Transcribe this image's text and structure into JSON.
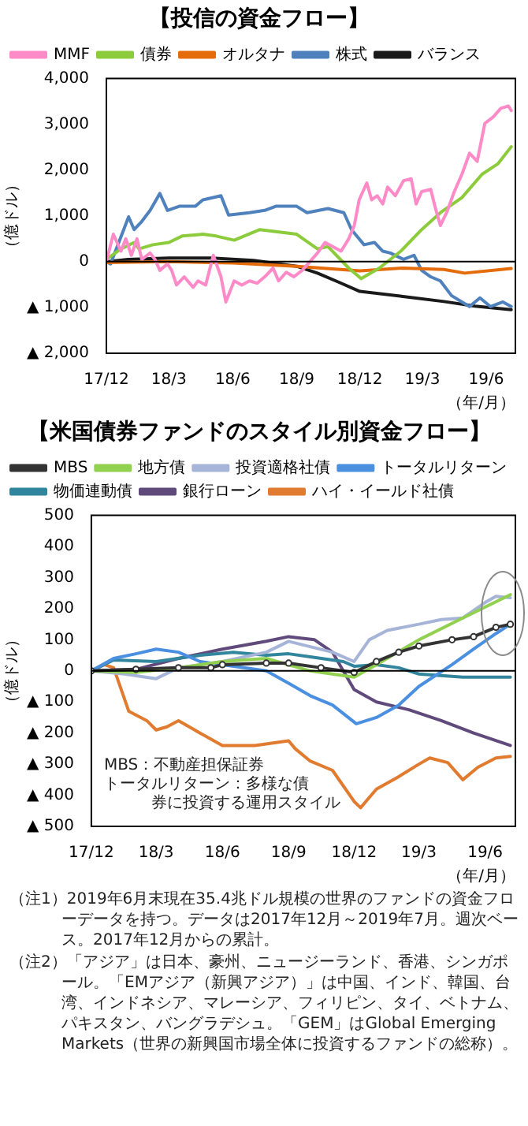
{
  "chart_data": [
    {
      "type": "line",
      "title": "【投信の資金フロー】",
      "ylabel": "（億ドル）",
      "xlabel": "（年/月）",
      "legend": "top left",
      "marker": "none",
      "grid": false,
      "xlim": [
        "2017-12-01",
        "2019-07-13"
      ],
      "xticks": [
        {
          "value": "2017-12-01",
          "label": "17/12"
        },
        {
          "value": "2018-03-01",
          "label": "18/3"
        },
        {
          "value": "2018-06-01",
          "label": "18/6"
        },
        {
          "value": "2018-09-01",
          "label": "18/9"
        },
        {
          "value": "2018-12-01",
          "label": "18/12"
        },
        {
          "value": "2019-03-01",
          "label": "19/3"
        },
        {
          "value": "2019-06-01",
          "label": "19/6"
        }
      ],
      "ylim": [
        -2000,
        4000
      ],
      "yticks": [
        {
          "value": -2000,
          "label": "▲ 2,000"
        },
        {
          "value": -1000,
          "label": "▲ 1,000"
        },
        0,
        {
          "value": 1000,
          "label": "1,000"
        },
        {
          "value": 2000,
          "label": "2,000"
        },
        {
          "value": 3000,
          "label": "3,000"
        },
        {
          "value": 4000,
          "label": "4,000"
        }
      ],
      "ref_lines": [
        {
          "axis": "y",
          "value": 0,
          "color": "#000000"
        }
      ],
      "series": [
        {
          "name": "MMF",
          "color": "#ff8ac8",
          "x": [
            "2017-12-01",
            "2017-12-11",
            "2017-12-22",
            "2017-12-29",
            "2018-01-06",
            "2018-01-14",
            "2018-01-21",
            "2018-02-02",
            "2018-02-09",
            "2018-02-16",
            "2018-02-27",
            "2018-03-05",
            "2018-03-12",
            "2018-03-23",
            "2018-04-05",
            "2018-04-12",
            "2018-04-23",
            "2018-05-04",
            "2018-05-15",
            "2018-05-22",
            "2018-06-03",
            "2018-06-14",
            "2018-06-25",
            "2018-07-06",
            "2018-07-17",
            "2018-07-29",
            "2018-08-06",
            "2018-08-17",
            "2018-08-28",
            "2018-09-09",
            "2018-09-20",
            "2018-10-01",
            "2018-10-12",
            "2018-10-23",
            "2018-11-04",
            "2018-11-15",
            "2018-11-23",
            "2018-11-30",
            "2018-12-11",
            "2018-12-18",
            "2018-12-26",
            "2019-01-03",
            "2019-01-10",
            "2019-01-21",
            "2019-02-02",
            "2019-02-13",
            "2019-02-20",
            "2019-02-28",
            "2019-03-13",
            "2019-03-20",
            "2019-03-27",
            "2019-04-05",
            "2019-04-16",
            "2019-04-27",
            "2019-05-08",
            "2019-05-19",
            "2019-05-30",
            "2019-06-11",
            "2019-06-22",
            "2019-07-03",
            "2019-07-07"
          ],
          "values": [
            0,
            600,
            230,
            500,
            140,
            500,
            50,
            190,
            50,
            -190,
            -50,
            -190,
            -510,
            -330,
            -560,
            -420,
            -510,
            140,
            -330,
            -880,
            -420,
            -510,
            -420,
            -470,
            -330,
            -140,
            -420,
            -230,
            -330,
            -190,
            0,
            190,
            420,
            330,
            230,
            500,
            790,
            1350,
            1720,
            1350,
            1440,
            1260,
            1630,
            1440,
            1770,
            1810,
            1260,
            1530,
            1580,
            1160,
            790,
            1070,
            1530,
            1910,
            2370,
            2190,
            3020,
            3160,
            3350,
            3400,
            3300
          ]
        },
        {
          "name": "債券",
          "color": "#8ccc3c",
          "x": [
            "2017-12-01",
            "2017-12-22",
            "2018-01-10",
            "2018-01-17",
            "2018-02-06",
            "2018-03-01",
            "2018-03-20",
            "2018-04-19",
            "2018-05-08",
            "2018-06-03",
            "2018-07-10",
            "2018-09-01",
            "2018-10-01",
            "2018-10-16",
            "2018-11-15",
            "2018-12-03",
            "2018-12-29",
            "2019-01-29",
            "2019-02-28",
            "2019-03-27",
            "2019-04-27",
            "2019-05-26",
            "2019-06-18",
            "2019-07-07"
          ],
          "values": [
            50,
            280,
            420,
            280,
            370,
            420,
            560,
            600,
            560,
            470,
            700,
            600,
            280,
            330,
            -140,
            -370,
            -140,
            230,
            700,
            1070,
            1400,
            1910,
            2140,
            2510
          ]
        },
        {
          "name": "オルタナ",
          "color": "#e46c0a",
          "x": [
            "2017-12-01",
            "2018-03-01",
            "2018-06-01",
            "2018-09-01",
            "2018-12-01",
            "2019-02-01",
            "2019-04-01",
            "2019-05-01",
            "2019-07-07"
          ],
          "values": [
            -20,
            0,
            -30,
            -100,
            -200,
            -140,
            -170,
            -250,
            -150
          ]
        },
        {
          "name": "株式",
          "color": "#4f81bd",
          "x": [
            "2017-12-01",
            "2017-12-07",
            "2018-01-02",
            "2018-01-10",
            "2018-01-21",
            "2018-02-02",
            "2018-02-16",
            "2018-02-27",
            "2018-03-16",
            "2018-04-08",
            "2018-04-19",
            "2018-05-15",
            "2018-05-26",
            "2018-06-25",
            "2018-07-17",
            "2018-08-02",
            "2018-09-01",
            "2018-09-16",
            "2018-10-16",
            "2018-11-08",
            "2018-11-19",
            "2018-12-07",
            "2018-12-22",
            "2019-01-03",
            "2019-01-14",
            "2019-02-02",
            "2019-02-17",
            "2019-02-28",
            "2019-03-13",
            "2019-03-27",
            "2019-04-12",
            "2019-04-27",
            "2019-05-08",
            "2019-05-23",
            "2019-06-07",
            "2019-06-25",
            "2019-07-07"
          ],
          "values": [
            0,
            -50,
            980,
            700,
            880,
            1120,
            1490,
            1120,
            1210,
            1210,
            1350,
            1440,
            1020,
            1070,
            1120,
            1210,
            1210,
            1070,
            1160,
            1070,
            700,
            370,
            420,
            230,
            190,
            50,
            140,
            -190,
            -330,
            -420,
            -740,
            -880,
            -980,
            -790,
            -980,
            -880,
            -980
          ]
        },
        {
          "name": "バランス",
          "color": "#1a1a1a",
          "x": [
            "2017-12-01",
            "2018-01-01",
            "2018-03-01",
            "2018-05-01",
            "2018-07-01",
            "2018-09-01",
            "2018-10-01",
            "2018-11-01",
            "2018-12-01",
            "2019-02-01",
            "2019-04-01",
            "2019-05-16",
            "2019-07-07"
          ],
          "values": [
            0,
            50,
            80,
            80,
            30,
            -100,
            -250,
            -450,
            -650,
            -760,
            -870,
            -970,
            -1050
          ]
        }
      ]
    },
    {
      "type": "line",
      "title": "【米国債券ファンドのスタイル別資金フロー】",
      "ylabel": "（億ドル）",
      "xlabel": "（年/月）",
      "legend": "top left",
      "marker": "none",
      "grid": false,
      "xlim": [
        "2017-12-01",
        "2019-07-13"
      ],
      "xticks": [
        {
          "value": "2017-12-01",
          "label": "17/12"
        },
        {
          "value": "2018-03-01",
          "label": "18/3"
        },
        {
          "value": "2018-06-01",
          "label": "18/6"
        },
        {
          "value": "2018-09-01",
          "label": "18/9"
        },
        {
          "value": "2018-12-01",
          "label": "18/12"
        },
        {
          "value": "2019-03-01",
          "label": "19/3"
        },
        {
          "value": "2019-06-01",
          "label": "19/6"
        }
      ],
      "ylim": [
        -500,
        500
      ],
      "yticks": [
        {
          "value": -500,
          "label": "▲ 500"
        },
        {
          "value": -400,
          "label": "▲ 400"
        },
        {
          "value": -300,
          "label": "▲ 300"
        },
        {
          "value": -200,
          "label": "▲ 200"
        },
        {
          "value": -100,
          "label": "▲ 100"
        },
        0,
        100,
        200,
        300,
        400,
        500
      ],
      "ref_lines": [
        {
          "axis": "y",
          "value": 0,
          "color": "#000000"
        }
      ],
      "annotations": [
        "MBS：不動産担保証券",
        "トータルリターン：多様な債券に投資する運用スタイル"
      ],
      "series": [
        {
          "name": "地方債",
          "color": "#92d050",
          "x": [
            "2017-12-01",
            "2018-02-01",
            "2018-04-01",
            "2018-06-01",
            "2018-08-01",
            "2018-10-01",
            "2018-12-01",
            "2019-01-01",
            "2019-03-01",
            "2019-05-01",
            "2019-07-06"
          ],
          "values": [
            0,
            -5,
            10,
            30,
            40,
            0,
            -20,
            20,
            100,
            170,
            245
          ]
        },
        {
          "name": "投資適格社債",
          "color": "#a6b4d8",
          "x": [
            "2017-12-01",
            "2018-01-16",
            "2018-03-01",
            "2018-04-01",
            "2018-06-01",
            "2018-08-01",
            "2018-09-01",
            "2018-11-01",
            "2018-12-01",
            "2018-12-22",
            "2019-01-16",
            "2019-03-01",
            "2019-04-01",
            "2019-05-01",
            "2019-06-01",
            "2019-06-16",
            "2019-07-06"
          ],
          "values": [
            0,
            -10,
            -25,
            10,
            30,
            60,
            95,
            60,
            30,
            100,
            130,
            150,
            165,
            170,
            220,
            240,
            235
          ]
        },
        {
          "name": "トータルリターン",
          "color": "#4a8fe0",
          "x": [
            "2017-12-01",
            "2018-01-01",
            "2018-02-01",
            "2018-03-01",
            "2018-04-01",
            "2018-05-01",
            "2018-06-01",
            "2018-08-01",
            "2018-09-01",
            "2018-10-01",
            "2018-11-01",
            "2018-12-04",
            "2019-01-01",
            "2019-02-01",
            "2019-03-01",
            "2019-04-16",
            "2019-05-16",
            "2019-06-16",
            "2019-07-06"
          ],
          "values": [
            0,
            40,
            55,
            70,
            60,
            30,
            20,
            0,
            -40,
            -80,
            -110,
            -170,
            -150,
            -110,
            -50,
            20,
            70,
            120,
            150
          ]
        },
        {
          "name": "MBS",
          "color": "#333333",
          "marker": "circle",
          "x": [
            "2017-12-01",
            "2018-02-01",
            "2018-04-01",
            "2018-05-16",
            "2018-06-01",
            "2018-08-01",
            "2018-09-01",
            "2018-10-16",
            "2018-12-01",
            "2019-01-01",
            "2019-02-01",
            "2019-03-01",
            "2019-04-16",
            "2019-05-16",
            "2019-06-16",
            "2019-07-06"
          ],
          "values": [
            0,
            5,
            10,
            10,
            20,
            25,
            25,
            10,
            -5,
            30,
            60,
            80,
            100,
            110,
            140,
            150
          ]
        },
        {
          "name": "物価連動債",
          "color": "#31859c",
          "x": [
            "2017-12-01",
            "2018-01-01",
            "2018-03-01",
            "2018-05-01",
            "2018-06-16",
            "2018-08-01",
            "2018-09-01",
            "2018-10-01",
            "2018-11-16",
            "2018-12-01",
            "2019-01-01",
            "2019-02-01",
            "2019-03-01",
            "2019-05-01",
            "2019-07-06"
          ],
          "values": [
            0,
            35,
            30,
            50,
            60,
            50,
            55,
            45,
            30,
            15,
            20,
            10,
            -10,
            -20,
            -20
          ]
        },
        {
          "name": "銀行ローン",
          "color": "#604a7b",
          "x": [
            "2017-12-01",
            "2018-02-01",
            "2018-04-01",
            "2018-06-01",
            "2018-08-01",
            "2018-09-01",
            "2018-10-07",
            "2018-11-01",
            "2018-12-01",
            "2019-01-01",
            "2019-02-15",
            "2019-04-01",
            "2019-05-16",
            "2019-07-06"
          ],
          "values": [
            0,
            5,
            40,
            70,
            95,
            110,
            100,
            60,
            -60,
            -100,
            -125,
            -160,
            -200,
            -240
          ]
        },
        {
          "name": "ハイ・イールド社債",
          "color": "#e07b30",
          "x": [
            "2017-12-01",
            "2017-12-19",
            "2018-01-01",
            "2018-01-22",
            "2018-02-16",
            "2018-03-01",
            "2018-03-16",
            "2018-04-01",
            "2018-04-16",
            "2018-05-01",
            "2018-06-01",
            "2018-07-16",
            "2018-09-01",
            "2018-09-10",
            "2018-10-01",
            "2018-11-01",
            "2018-12-01",
            "2018-12-10",
            "2019-01-01",
            "2019-02-01",
            "2019-03-01",
            "2019-03-16",
            "2019-04-10",
            "2019-05-01",
            "2019-05-22",
            "2019-06-16",
            "2019-07-06"
          ],
          "values": [
            0,
            20,
            10,
            -130,
            -160,
            -190,
            -180,
            -160,
            -180,
            -200,
            -240,
            -240,
            -225,
            -250,
            -290,
            -320,
            -420,
            -440,
            -380,
            -340,
            -300,
            -280,
            -295,
            -350,
            -310,
            -280,
            -275
          ]
        }
      ]
    },
    {
      "type": "other",
      "annotations": [
        "（注1）2019年6月末現在35.4兆ドル規模の世界のファンドの資金フローデータを持つ。データは2017年12月～2019年7月。週次ベース。2017年12月からの累計。",
        "（注2）「アジア」は日本、豪州、ニュージーランド、香港、シンガポール。「EMアジア（新興アジア）」は中国、インド、韓国、台湾、インドネシア、マレーシア、フィリピン、タイ、ベトナム、パキスタン、バングラデシュ。「GEM」はGlobal Emerging Markets（世界の新興国市場全体に投資するファンドの総称）。"
      ]
    }
  ]
}
